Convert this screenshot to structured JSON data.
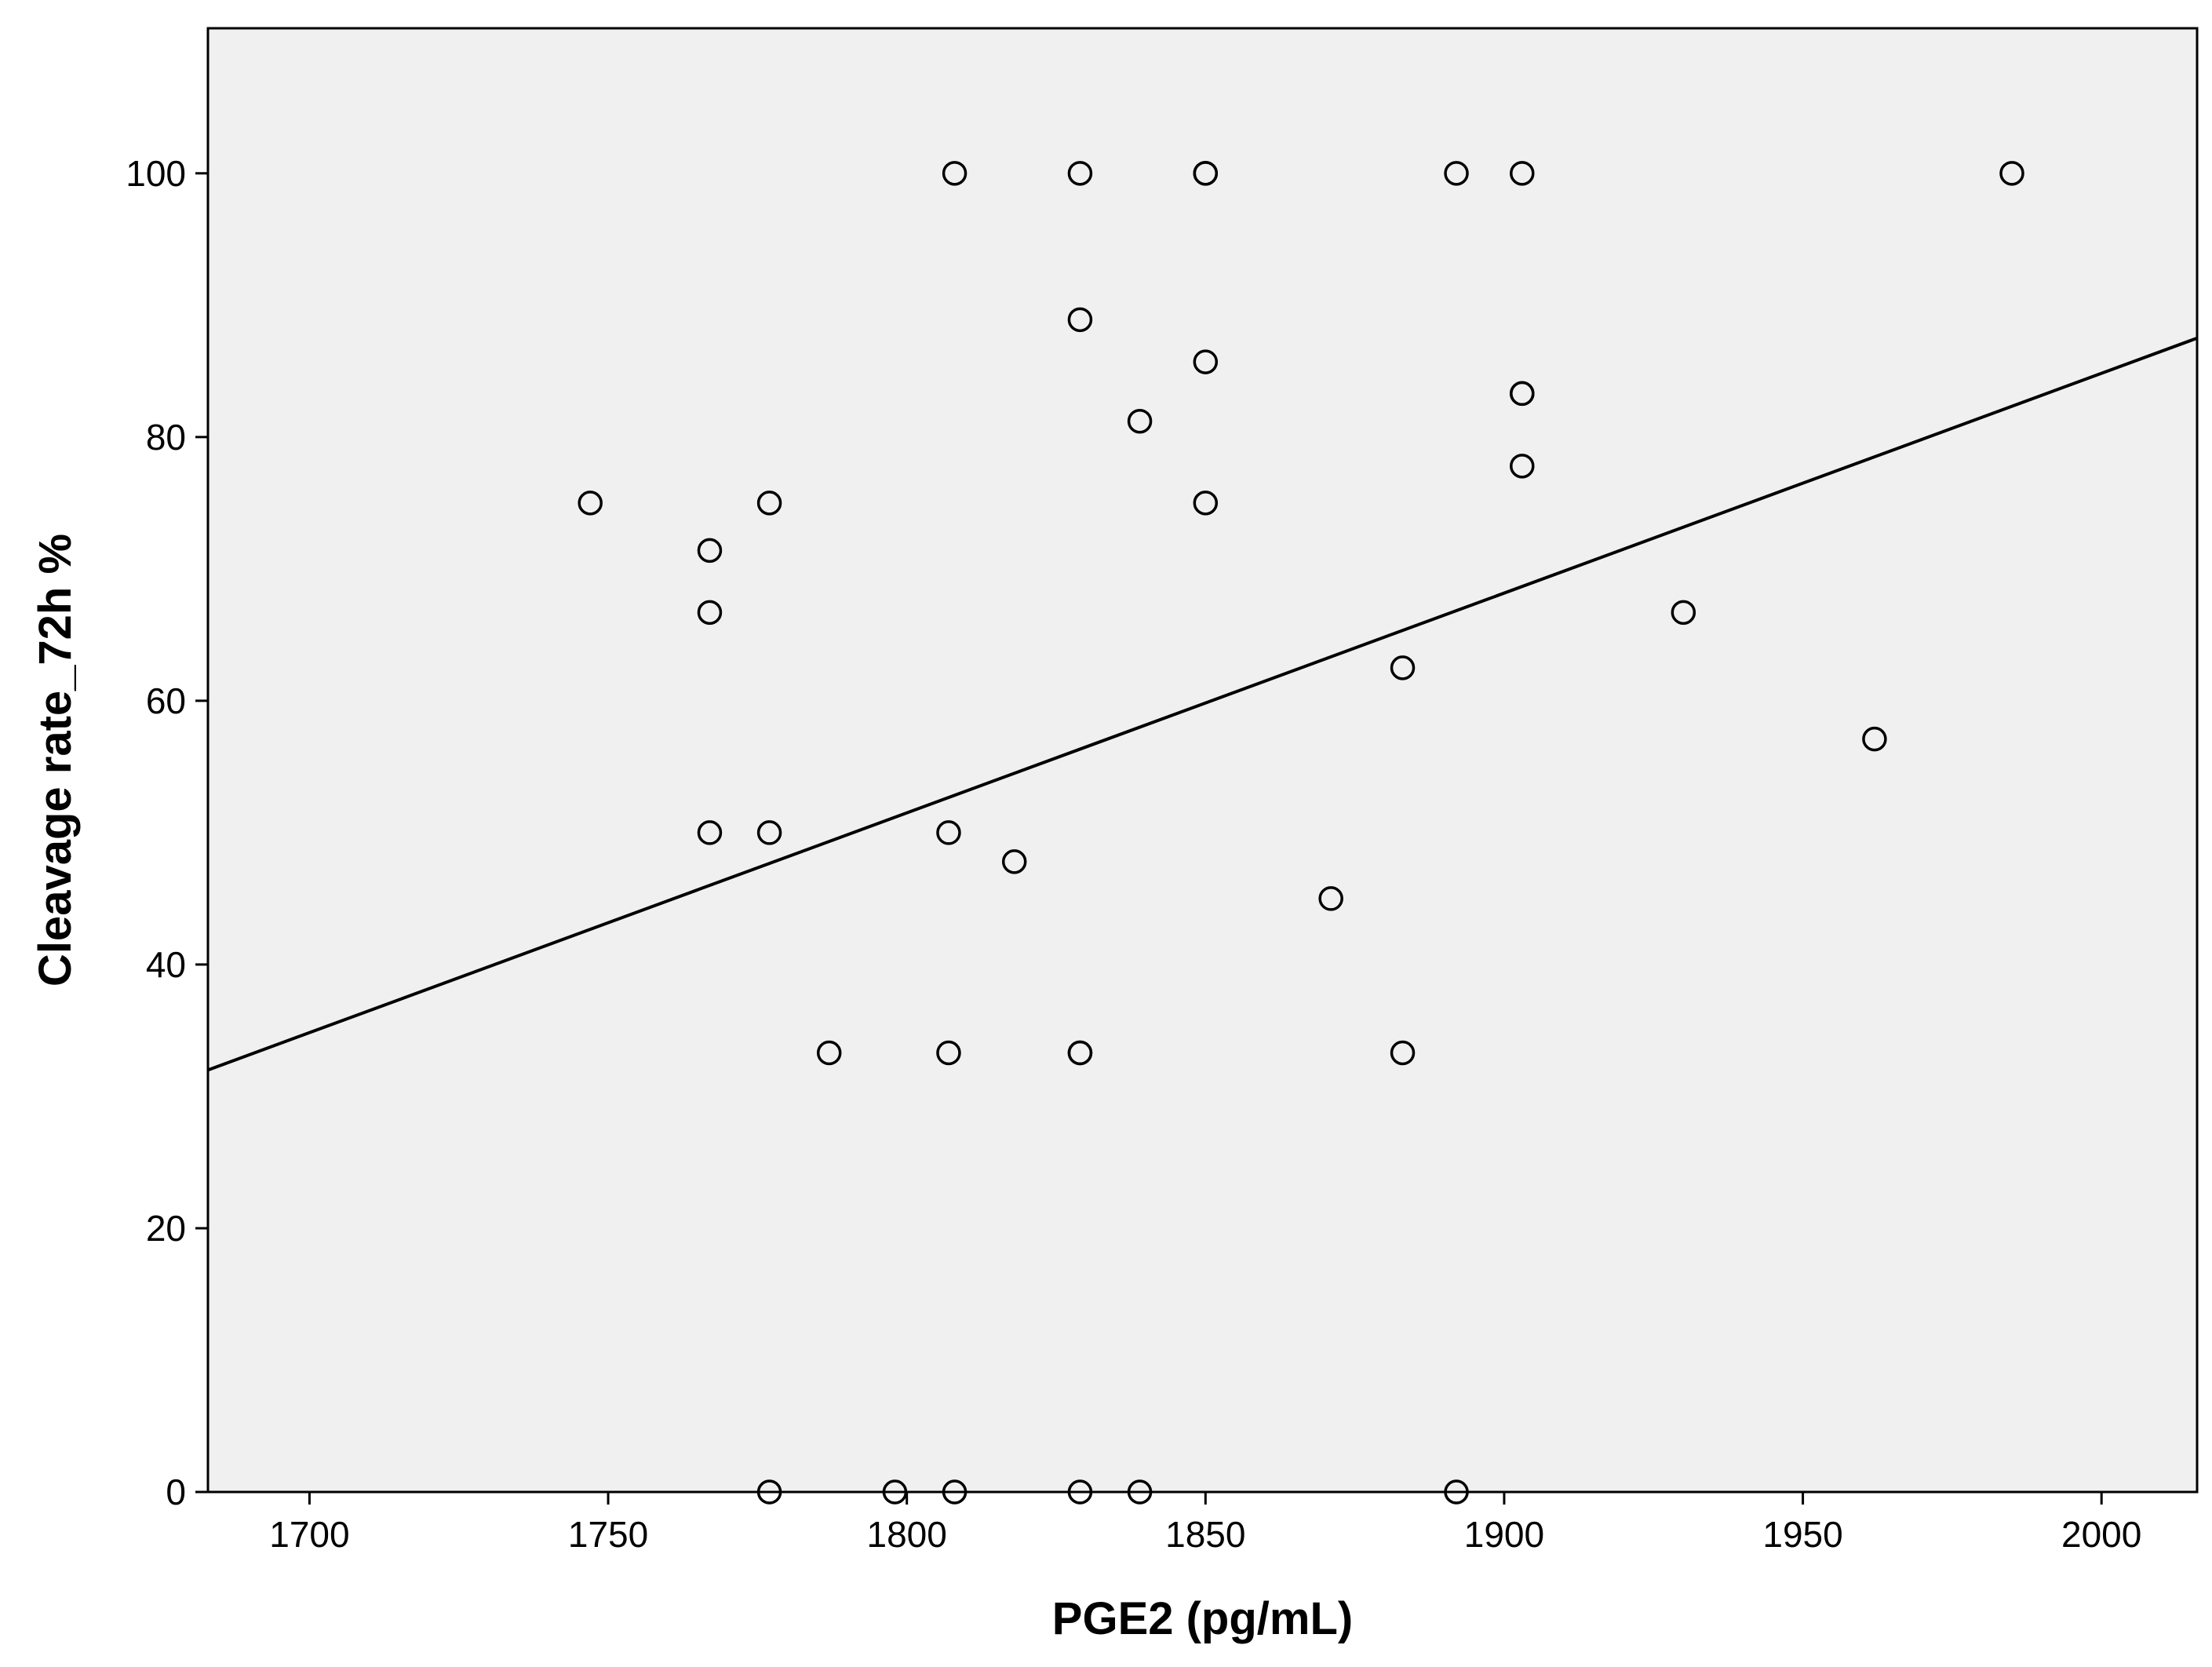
{
  "chart_data": {
    "type": "scatter",
    "title": "",
    "xlabel": "PGE2 (pg/mL)",
    "ylabel": "Cleavage rate_72h %",
    "xlim": [
      1683,
      2016
    ],
    "ylim": [
      0,
      111
    ],
    "x_ticks": [
      1700,
      1750,
      1800,
      1850,
      1900,
      1950,
      2000
    ],
    "y_ticks": [
      0,
      20,
      40,
      60,
      80,
      100
    ],
    "grid": false,
    "legend": "none",
    "colors": {
      "plot_background": "#f0f0f0",
      "marker_stroke": "#000000",
      "fit_line": "#000000"
    },
    "points": [
      {
        "x": 1747,
        "y": 75
      },
      {
        "x": 1767,
        "y": 71.4
      },
      {
        "x": 1767,
        "y": 66.7
      },
      {
        "x": 1767,
        "y": 50
      },
      {
        "x": 1777,
        "y": 75
      },
      {
        "x": 1777,
        "y": 50
      },
      {
        "x": 1777,
        "y": 0
      },
      {
        "x": 1787,
        "y": 33.3
      },
      {
        "x": 1798,
        "y": 0
      },
      {
        "x": 1807,
        "y": 50
      },
      {
        "x": 1807,
        "y": 33.3
      },
      {
        "x": 1808,
        "y": 100
      },
      {
        "x": 1808,
        "y": 0
      },
      {
        "x": 1818,
        "y": 47.8
      },
      {
        "x": 1829,
        "y": 100
      },
      {
        "x": 1829,
        "y": 88.9
      },
      {
        "x": 1829,
        "y": 33.3
      },
      {
        "x": 1829,
        "y": 33.3
      },
      {
        "x": 1829,
        "y": 0
      },
      {
        "x": 1839,
        "y": 81.2
      },
      {
        "x": 1839,
        "y": 0
      },
      {
        "x": 1850,
        "y": 100
      },
      {
        "x": 1850,
        "y": 100
      },
      {
        "x": 1850,
        "y": 85.7
      },
      {
        "x": 1850,
        "y": 75
      },
      {
        "x": 1871,
        "y": 45
      },
      {
        "x": 1883,
        "y": 62.5
      },
      {
        "x": 1883,
        "y": 33.3
      },
      {
        "x": 1892,
        "y": 100
      },
      {
        "x": 1892,
        "y": 0
      },
      {
        "x": 1903,
        "y": 100
      },
      {
        "x": 1903,
        "y": 83.3
      },
      {
        "x": 1903,
        "y": 83.3
      },
      {
        "x": 1903,
        "y": 77.8
      },
      {
        "x": 1930,
        "y": 66.7
      },
      {
        "x": 1962,
        "y": 57.1
      },
      {
        "x": 1985,
        "y": 100
      }
    ],
    "fit_line": {
      "x": [
        1683,
        2016
      ],
      "y": [
        32,
        87.5
      ]
    }
  }
}
